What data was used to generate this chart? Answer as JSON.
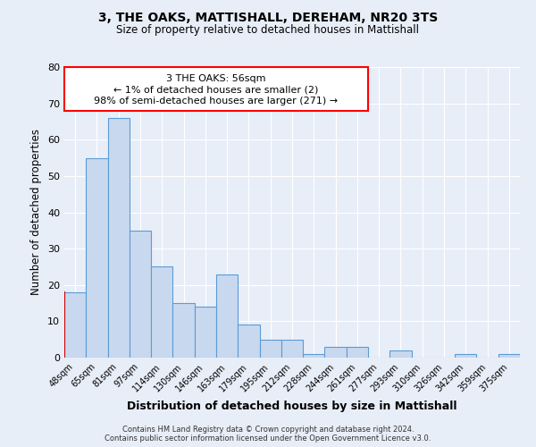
{
  "title": "3, THE OAKS, MATTISHALL, DEREHAM, NR20 3TS",
  "subtitle": "Size of property relative to detached houses in Mattishall",
  "xlabel": "Distribution of detached houses by size in Mattishall",
  "ylabel": "Number of detached properties",
  "bar_color": "#c8d9ef",
  "bar_edge_color": "#5b9bd5",
  "highlight_bar_edge_color": "#cc0000",
  "background_color": "#e8eef8",
  "grid_color": "#ffffff",
  "bin_labels": [
    "48sqm",
    "65sqm",
    "81sqm",
    "97sqm",
    "114sqm",
    "130sqm",
    "146sqm",
    "163sqm",
    "179sqm",
    "195sqm",
    "212sqm",
    "228sqm",
    "244sqm",
    "261sqm",
    "277sqm",
    "293sqm",
    "310sqm",
    "326sqm",
    "342sqm",
    "359sqm",
    "375sqm"
  ],
  "counts": [
    18,
    55,
    66,
    35,
    25,
    15,
    14,
    23,
    9,
    5,
    5,
    1,
    3,
    3,
    0,
    2,
    0,
    0,
    1,
    0,
    1
  ],
  "highlight_index": 0,
  "ylim": [
    0,
    80
  ],
  "yticks": [
    0,
    10,
    20,
    30,
    40,
    50,
    60,
    70,
    80
  ],
  "annotation_title": "3 THE OAKS: 56sqm",
  "annotation_line1": "← 1% of detached houses are smaller (2)",
  "annotation_line2": "98% of semi-detached houses are larger (271) →",
  "footer_line1": "Contains HM Land Registry data © Crown copyright and database right 2024.",
  "footer_line2": "Contains public sector information licensed under the Open Government Licence v3.0."
}
